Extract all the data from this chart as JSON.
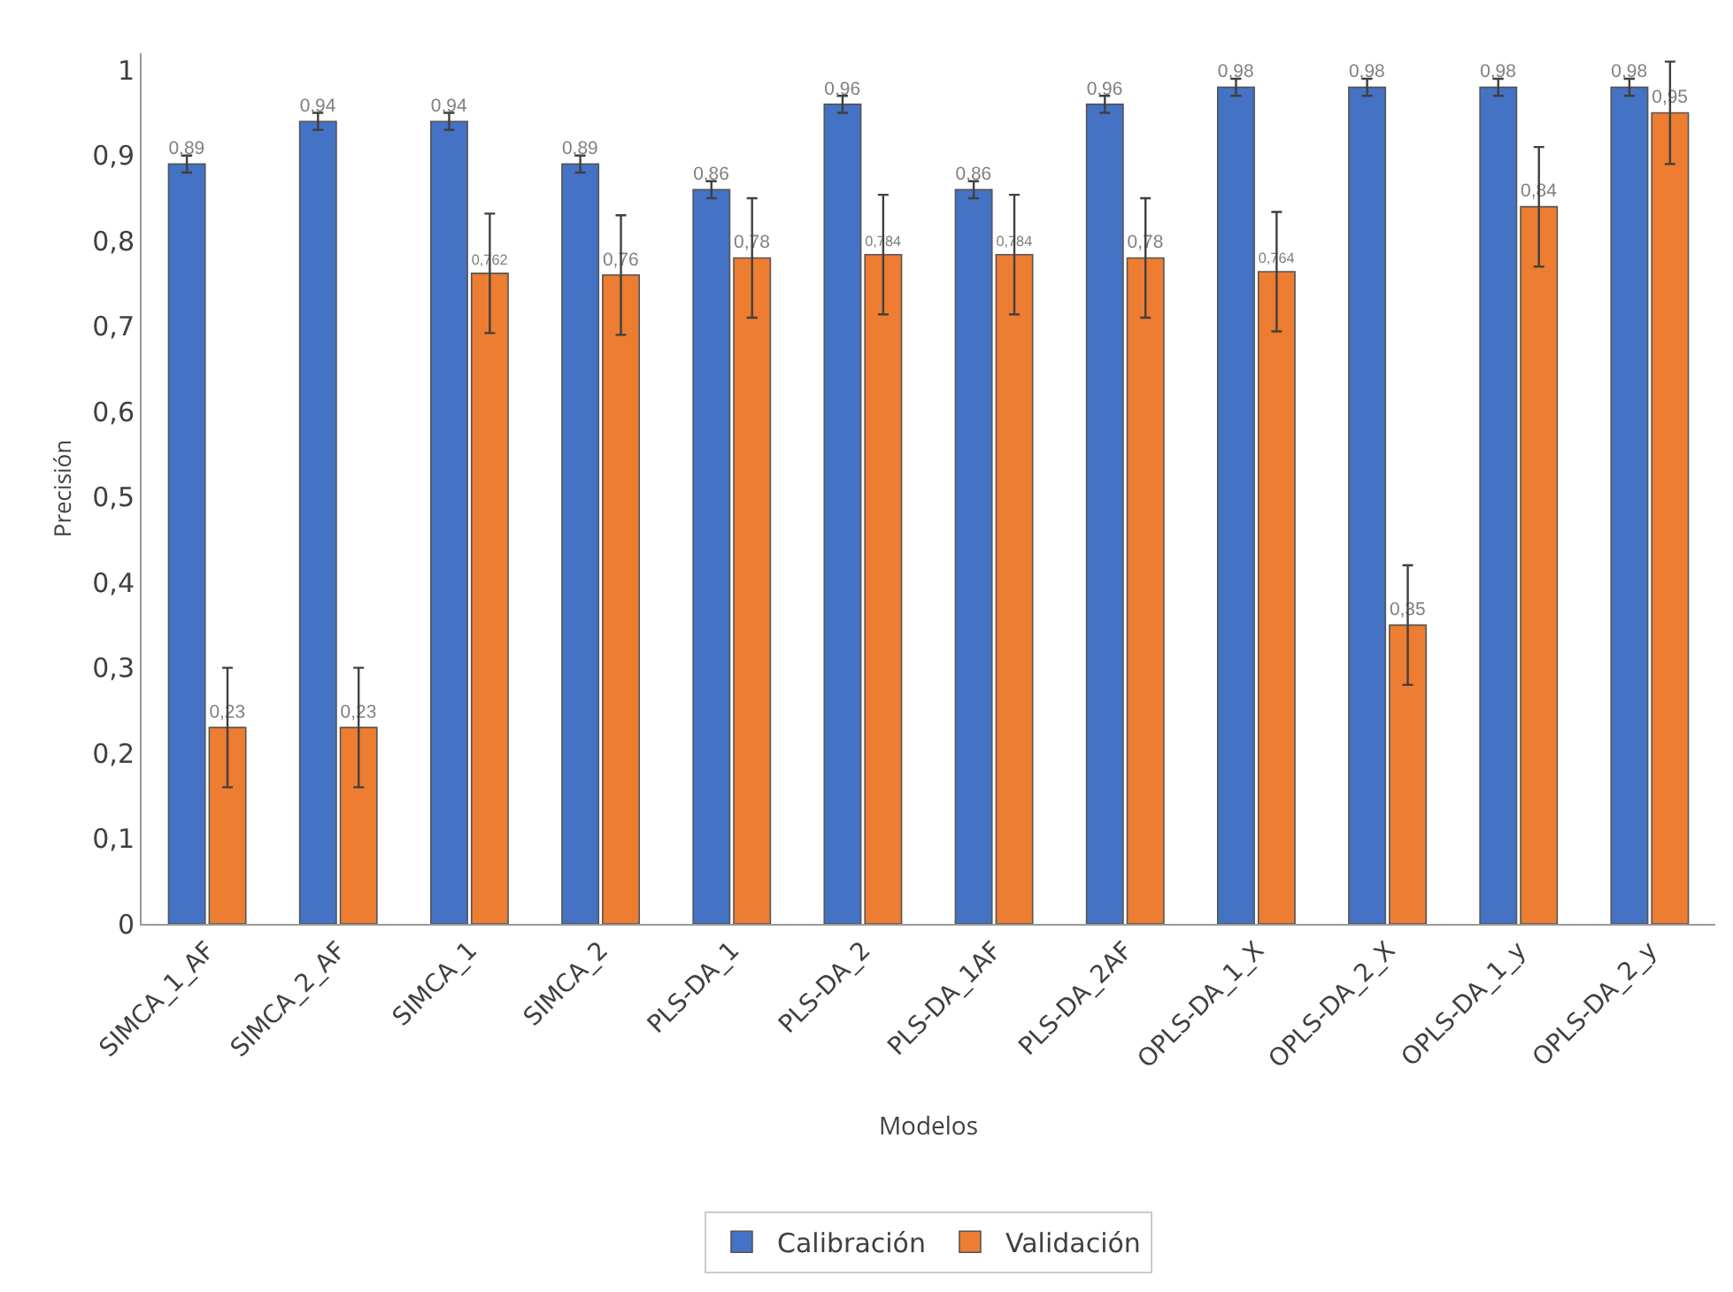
{
  "chart_data": {
    "type": "bar",
    "xlabel": "Modelos",
    "ylabel": "Precisión",
    "categories": [
      "SIMCA_1_AF",
      "SIMCA_2_AF",
      "SIMCA_1",
      "SIMCA_2",
      "PLS-DA_1",
      "PLS-DA_2",
      "PLS-DA_1AF",
      "PLS-DA_2AF",
      "OPLS-DA_1_X",
      "OPLS-DA_2_X",
      "OPLS-DA_1_y",
      "OPLS-DA_2_y"
    ],
    "series": [
      {
        "name": "Calibración",
        "color": "#4472c4",
        "values": [
          0.89,
          0.94,
          0.94,
          0.89,
          0.86,
          0.96,
          0.86,
          0.96,
          0.98,
          0.98,
          0.98,
          0.98
        ],
        "errors": [
          0.01,
          0.01,
          0.01,
          0.01,
          0.01,
          0.01,
          0.01,
          0.01,
          0.01,
          0.01,
          0.01,
          0.01
        ],
        "value_labels": [
          "0,89",
          "0,94",
          "0,94",
          "0,89",
          "0,86",
          "0,96",
          "0,86",
          "0,96",
          "0,98",
          "0,98",
          "0,98",
          "0,98"
        ]
      },
      {
        "name": "Validación",
        "color": "#ed7d31",
        "values": [
          0.23,
          0.23,
          0.762,
          0.76,
          0.78,
          0.784,
          0.784,
          0.78,
          0.764,
          0.35,
          0.84,
          0.95
        ],
        "errors": [
          0.07,
          0.07,
          0.07,
          0.07,
          0.07,
          0.07,
          0.07,
          0.07,
          0.07,
          0.07,
          0.07,
          0.06
        ],
        "value_labels": [
          "0,23",
          "0,23",
          "0,762",
          "0,76",
          "0,78",
          "0,784",
          "0,784",
          "0,78",
          "0,764",
          "0,35",
          "0,84",
          "0,95"
        ]
      }
    ],
    "ylim": [
      0,
      1.02
    ],
    "yticks": [
      {
        "value": 0,
        "label": "0"
      },
      {
        "value": 0.1,
        "label": "0,1"
      },
      {
        "value": 0.2,
        "label": "0,2"
      },
      {
        "value": 0.3,
        "label": "0,3"
      },
      {
        "value": 0.4,
        "label": "0,4"
      },
      {
        "value": 0.5,
        "label": "0,5"
      },
      {
        "value": 0.6,
        "label": "0,6"
      },
      {
        "value": 0.7,
        "label": "0,7"
      },
      {
        "value": 0.8,
        "label": "0,8"
      },
      {
        "value": 0.9,
        "label": "0,9"
      },
      {
        "value": 1,
        "label": "1"
      }
    ],
    "grid": false,
    "legend": "bottom"
  }
}
